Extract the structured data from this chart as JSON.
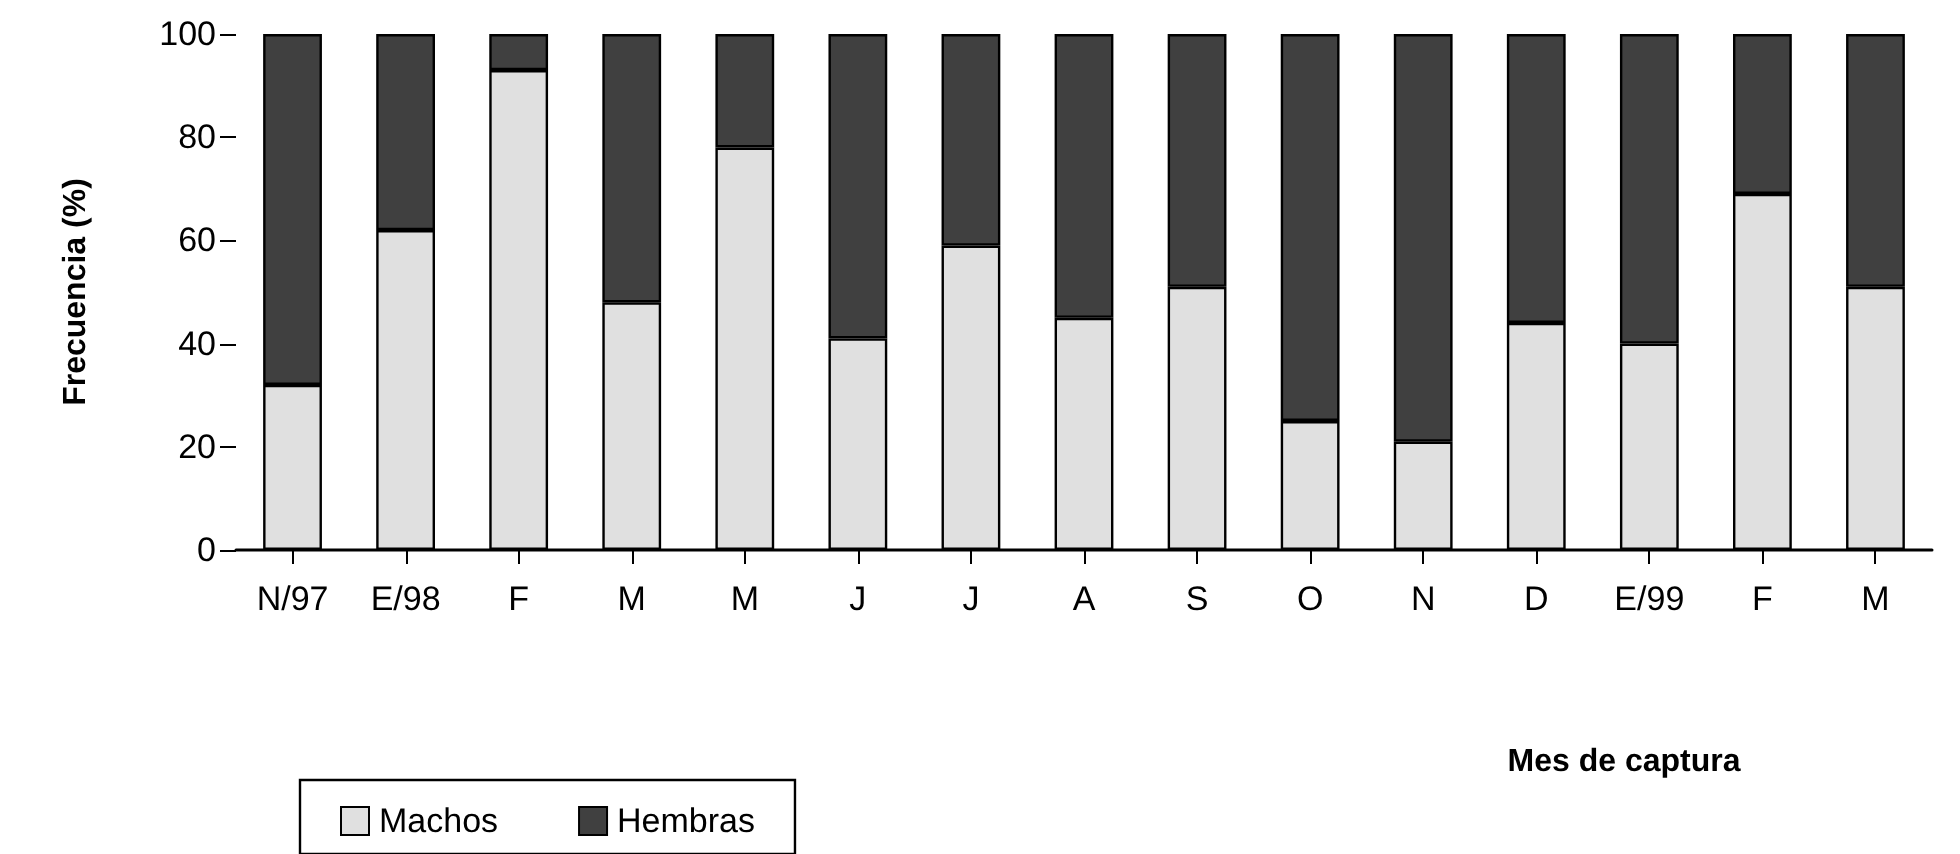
{
  "chart_data": {
    "type": "bar",
    "stacked": true,
    "xlabel": "Mes de captura",
    "ylabel": "Frecuencia (%)",
    "categories": [
      "N/97",
      "E/98",
      "F",
      "M",
      "M",
      "J",
      "J",
      "A",
      "S",
      "O",
      "N",
      "D",
      "E/99",
      "F",
      "M"
    ],
    "series": [
      {
        "name": "Machos",
        "color": "#e0e0e0",
        "values": [
          32,
          62,
          93,
          48,
          78,
          41,
          59,
          45,
          51,
          25,
          21,
          44,
          40,
          69,
          51
        ]
      },
      {
        "name": "Hembras",
        "color": "#404040",
        "values": [
          68,
          38,
          7,
          52,
          22,
          59,
          41,
          55,
          49,
          75,
          79,
          56,
          60,
          31,
          49
        ]
      }
    ],
    "ylim": [
      0,
      100
    ],
    "yticks": [
      0,
      20,
      40,
      60,
      80,
      100
    ],
    "grid": false,
    "legend": "bottom left"
  }
}
